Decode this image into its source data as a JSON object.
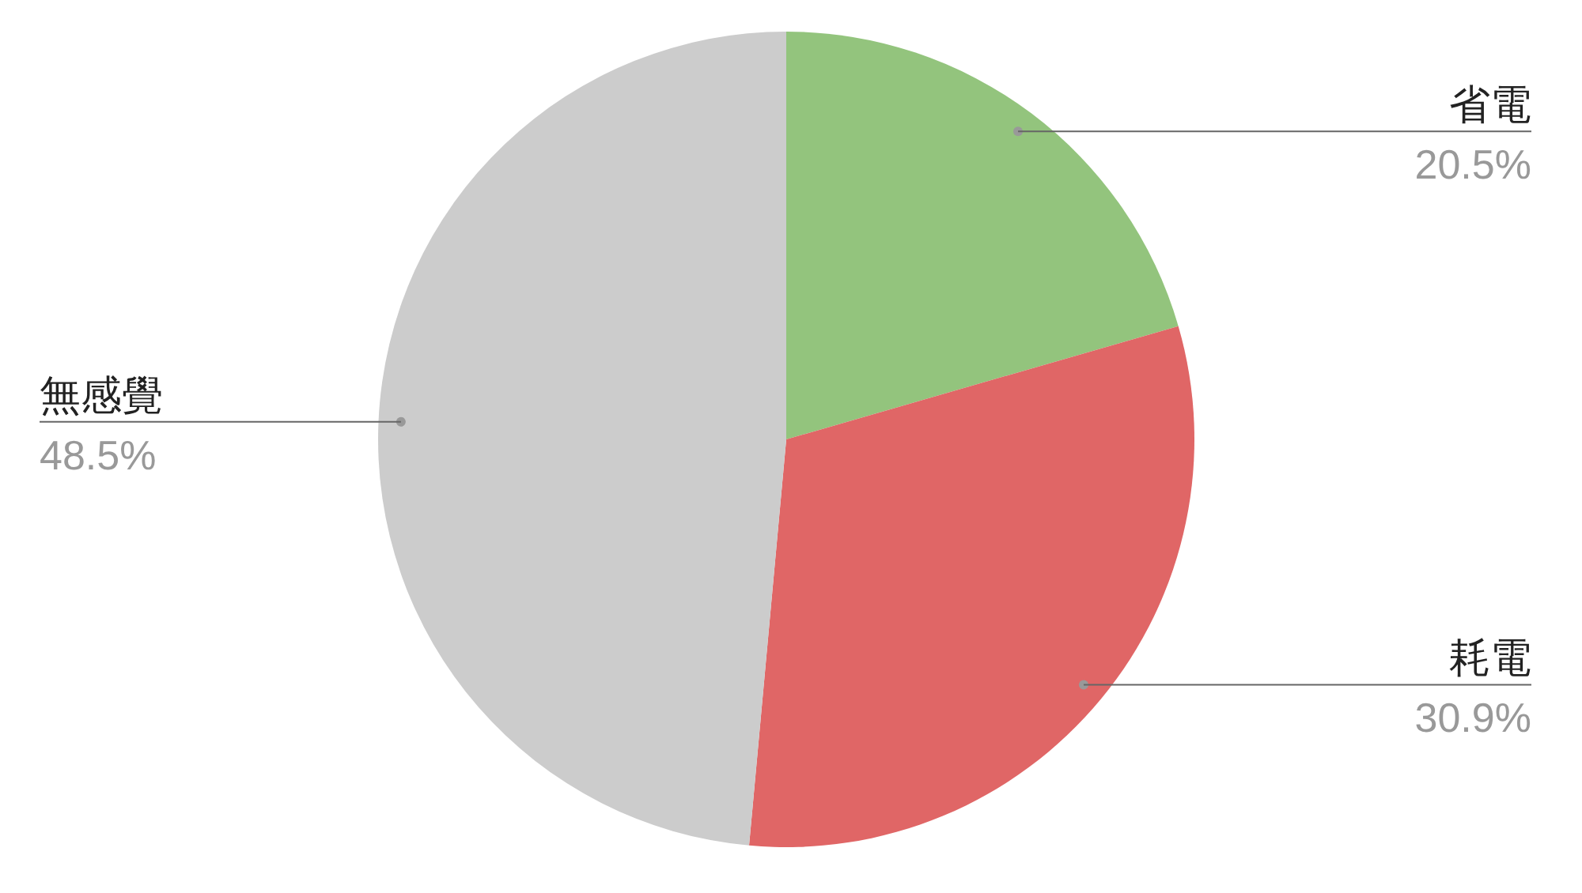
{
  "chart_data": {
    "type": "pie",
    "categories": [
      "省電",
      "耗電",
      "無感覺"
    ],
    "values": [
      20.5,
      30.9,
      48.5
    ],
    "value_labels": [
      "20.5%",
      "30.9%",
      "48.5%"
    ],
    "colors": [
      "#93c47d",
      "#e06666",
      "#cccccc"
    ],
    "legend": false
  }
}
